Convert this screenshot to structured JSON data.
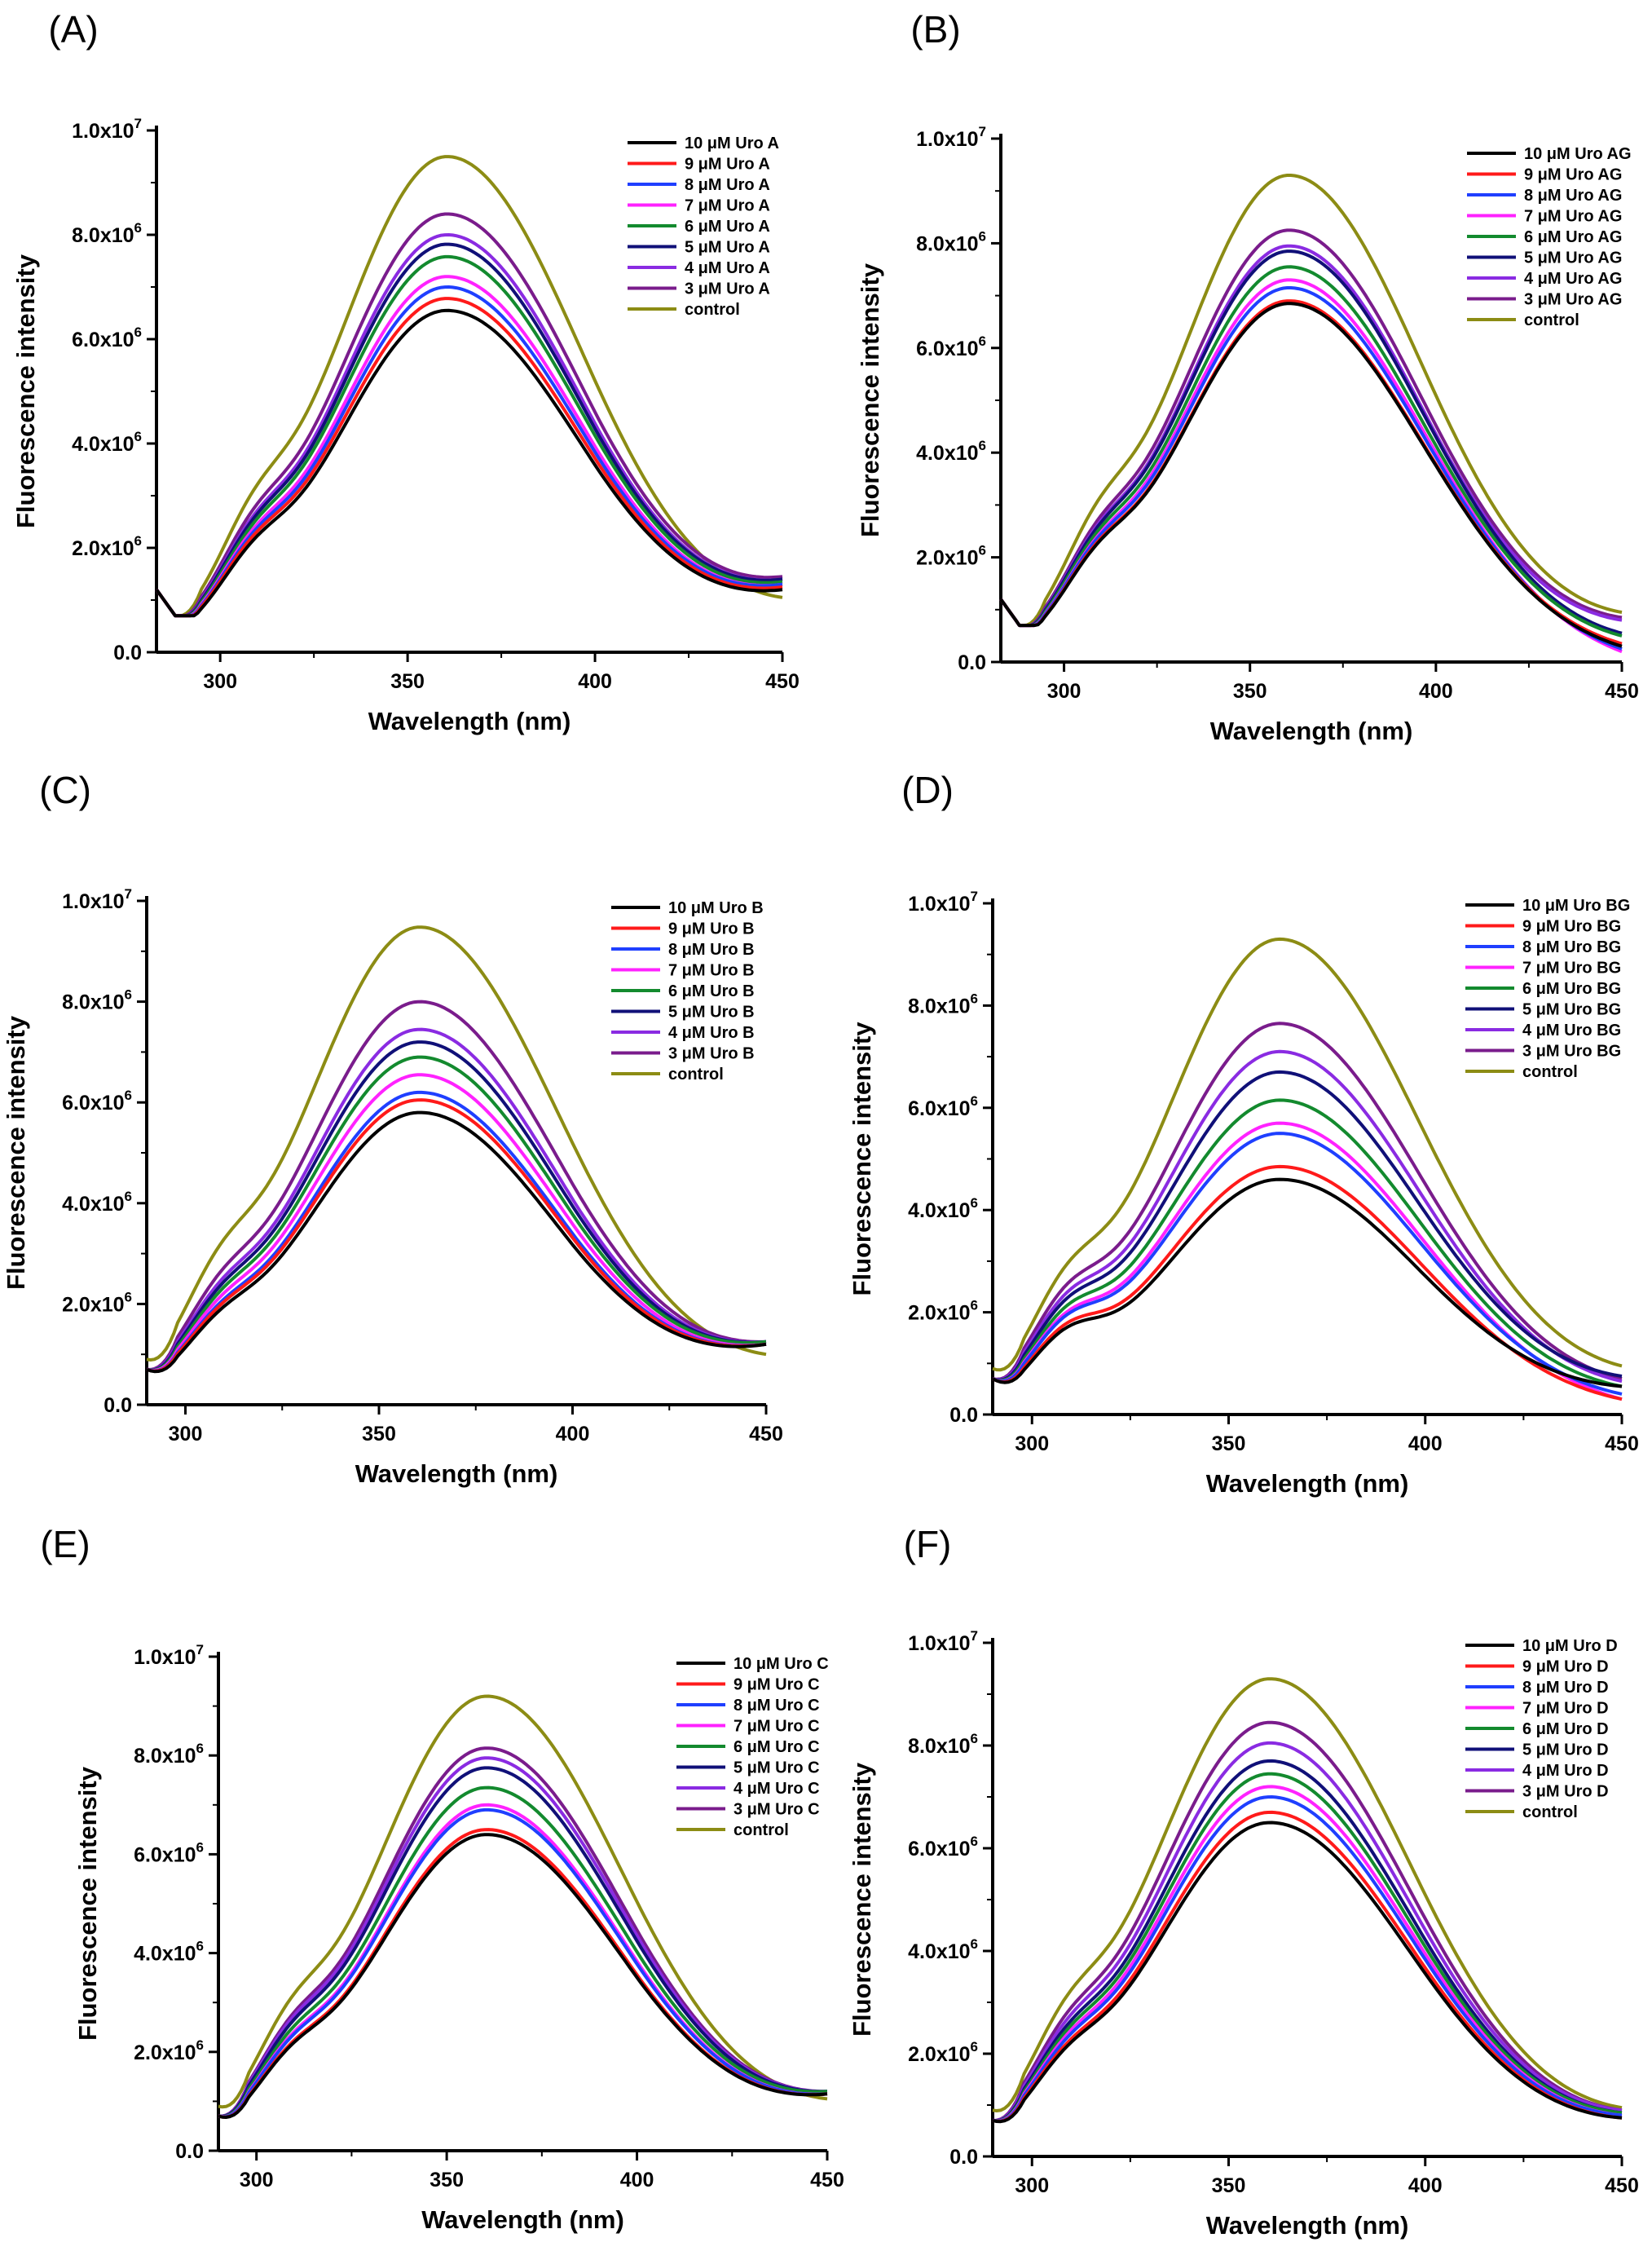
{
  "colors": {
    "c10": "#000000",
    "c9": "#ff1a1a",
    "c8": "#1f3fff",
    "c7": "#ff22ff",
    "c6": "#138a2e",
    "c5": "#101078",
    "c4": "#8a2be2",
    "c3": "#7a1c8c",
    "control": "#8c8c14"
  },
  "chart_data": [
    {
      "type": "line",
      "panel": "(A)",
      "xlabel": "Wavelength (nm)",
      "ylabel": "Fluorescence intensity",
      "xlim": [
        283,
        450
      ],
      "ylim": [
        0,
        10000000
      ],
      "xticks": [
        "300",
        "350",
        "400",
        "450"
      ],
      "yticks": [
        {
          "value": 0,
          "base": "0.0",
          "exp": ""
        },
        {
          "value": 2000000,
          "base": "2.0x10",
          "exp": "6"
        },
        {
          "value": 4000000,
          "base": "4.0x10",
          "exp": "6"
        },
        {
          "value": 6000000,
          "base": "6.0x10",
          "exp": "6"
        },
        {
          "value": 8000000,
          "base": "8.0x10",
          "exp": "6"
        },
        {
          "value": 10000000,
          "base": "1.0x10",
          "exp": "7"
        }
      ],
      "legend_position": "top-right",
      "series": [
        {
          "name": "10 μM Uro A",
          "key": "c10",
          "peak": 6550000,
          "tail": 1200000,
          "shoulder": 1900000
        },
        {
          "name": "9 μM Uro A",
          "key": "c9",
          "peak": 6780000,
          "tail": 1250000,
          "shoulder": 2000000
        },
        {
          "name": "8 μM Uro A",
          "key": "c8",
          "peak": 7000000,
          "tail": 1300000,
          "shoulder": 2050000
        },
        {
          "name": "7 μM Uro A",
          "key": "c7",
          "peak": 7200000,
          "tail": 1300000,
          "shoulder": 2100000
        },
        {
          "name": "6 μM Uro A",
          "key": "c6",
          "peak": 7580000,
          "tail": 1350000,
          "shoulder": 2150000
        },
        {
          "name": "5 μM Uro A",
          "key": "c5",
          "peak": 7820000,
          "tail": 1400000,
          "shoulder": 2250000
        },
        {
          "name": "4 μM Uro A",
          "key": "c4",
          "peak": 8000000,
          "tail": 1400000,
          "shoulder": 2300000
        },
        {
          "name": "3 μM Uro A",
          "key": "c3",
          "peak": 8400000,
          "tail": 1450000,
          "shoulder": 2400000
        },
        {
          "name": "control",
          "key": "control",
          "peak": 9500000,
          "tail": 1050000,
          "shoulder": 2700000
        }
      ]
    },
    {
      "type": "line",
      "panel": "(B)",
      "xlabel": "Wavelength (nm)",
      "ylabel": "Fluorescence intensity",
      "xlim": [
        283,
        450
      ],
      "ylim": [
        0,
        10000000
      ],
      "xticks": [
        "300",
        "350",
        "400",
        "450"
      ],
      "yticks": [
        {
          "value": 0,
          "base": "0.0",
          "exp": ""
        },
        {
          "value": 2000000,
          "base": "2.0x10",
          "exp": "6"
        },
        {
          "value": 4000000,
          "base": "4.0x10",
          "exp": "6"
        },
        {
          "value": 6000000,
          "base": "6.0x10",
          "exp": "6"
        },
        {
          "value": 8000000,
          "base": "8.0x10",
          "exp": "6"
        },
        {
          "value": 10000000,
          "base": "1.0x10",
          "exp": "7"
        }
      ],
      "legend_position": "top-right",
      "series": [
        {
          "name": "10 μM Uro AG",
          "key": "c10",
          "peak": 6850000,
          "tail": 300000,
          "shoulder": 2000000
        },
        {
          "name": "9 μM Uro AG",
          "key": "c9",
          "peak": 6900000,
          "tail": 350000,
          "shoulder": 2050000
        },
        {
          "name": "8 μM Uro AG",
          "key": "c8",
          "peak": 7150000,
          "tail": 250000,
          "shoulder": 2100000
        },
        {
          "name": "7 μM Uro AG",
          "key": "c7",
          "peak": 7300000,
          "tail": 200000,
          "shoulder": 2100000
        },
        {
          "name": "6 μM Uro AG",
          "key": "c6",
          "peak": 7550000,
          "tail": 500000,
          "shoulder": 2200000
        },
        {
          "name": "5 μM Uro AG",
          "key": "c5",
          "peak": 7850000,
          "tail": 550000,
          "shoulder": 2250000
        },
        {
          "name": "4 μM Uro AG",
          "key": "c4",
          "peak": 7950000,
          "tail": 800000,
          "shoulder": 2300000
        },
        {
          "name": "3 μM Uro AG",
          "key": "c3",
          "peak": 8250000,
          "tail": 850000,
          "shoulder": 2350000
        },
        {
          "name": "control",
          "key": "control",
          "peak": 9300000,
          "tail": 950000,
          "shoulder": 2700000
        }
      ]
    },
    {
      "type": "line",
      "panel": "(C)",
      "xlabel": "Wavelength (nm)",
      "ylabel": "Fluorescence intensity",
      "xlim": [
        290,
        450
      ],
      "ylim": [
        0,
        10000000
      ],
      "xticks": [
        "300",
        "350",
        "400",
        "450"
      ],
      "yticks": [
        {
          "value": 0,
          "base": "0.0",
          "exp": ""
        },
        {
          "value": 2000000,
          "base": "2.0x10",
          "exp": "6"
        },
        {
          "value": 4000000,
          "base": "4.0x10",
          "exp": "6"
        },
        {
          "value": 6000000,
          "base": "6.0x10",
          "exp": "6"
        },
        {
          "value": 8000000,
          "base": "8.0x10",
          "exp": "6"
        },
        {
          "value": 10000000,
          "base": "1.0x10",
          "exp": "7"
        }
      ],
      "legend_position": "top-right",
      "series": [
        {
          "name": "10 μM Uro B",
          "key": "c10",
          "peak": 5800000,
          "tail": 1200000,
          "shoulder": 1600000
        },
        {
          "name": "9 μM Uro B",
          "key": "c9",
          "peak": 6050000,
          "tail": 1200000,
          "shoulder": 1700000
        },
        {
          "name": "8 μM Uro B",
          "key": "c8",
          "peak": 6200000,
          "tail": 1200000,
          "shoulder": 1750000
        },
        {
          "name": "7 μM Uro B",
          "key": "c7",
          "peak": 6550000,
          "tail": 1200000,
          "shoulder": 1850000
        },
        {
          "name": "6 μM Uro B",
          "key": "c6",
          "peak": 6900000,
          "tail": 1250000,
          "shoulder": 1950000
        },
        {
          "name": "5 μM Uro B",
          "key": "c5",
          "peak": 7200000,
          "tail": 1250000,
          "shoulder": 2050000
        },
        {
          "name": "4 μM Uro B",
          "key": "c4",
          "peak": 7450000,
          "tail": 1250000,
          "shoulder": 2150000
        },
        {
          "name": "3 μM Uro B",
          "key": "c3",
          "peak": 8000000,
          "tail": 1250000,
          "shoulder": 2300000
        },
        {
          "name": "control",
          "key": "control",
          "peak": 9480000,
          "tail": 1000000,
          "shoulder": 2900000
        }
      ]
    },
    {
      "type": "line",
      "panel": "(D)",
      "xlabel": "Wavelength (nm)",
      "ylabel": "Fluorescence intensity",
      "xlim": [
        290,
        450
      ],
      "ylim": [
        0,
        10000000
      ],
      "xticks": [
        "300",
        "350",
        "400",
        "450"
      ],
      "yticks": [
        {
          "value": 0,
          "base": "0.0",
          "exp": ""
        },
        {
          "value": 2000000,
          "base": "2.0x10",
          "exp": "6"
        },
        {
          "value": 4000000,
          "base": "4.0x10",
          "exp": "6"
        },
        {
          "value": 6000000,
          "base": "6.0x10",
          "exp": "6"
        },
        {
          "value": 8000000,
          "base": "8.0x10",
          "exp": "6"
        },
        {
          "value": 10000000,
          "base": "1.0x10",
          "exp": "7"
        }
      ],
      "legend_position": "top-right",
      "series": [
        {
          "name": "10 μM Uro BG",
          "key": "c10",
          "peak": 4600000,
          "tail": 550000,
          "shoulder": 2300000
        },
        {
          "name": "9 μM Uro BG",
          "key": "c9",
          "peak": 4850000,
          "tail": 300000,
          "shoulder": 2400000
        },
        {
          "name": "8 μM Uro BG",
          "key": "c8",
          "peak": 5500000,
          "tail": 400000,
          "shoulder": 2500000
        },
        {
          "name": "7 μM Uro BG",
          "key": "c7",
          "peak": 5700000,
          "tail": 300000,
          "shoulder": 2550000
        },
        {
          "name": "6 μM Uro BG",
          "key": "c6",
          "peak": 6150000,
          "tail": 550000,
          "shoulder": 2650000
        },
        {
          "name": "5 μM Uro BG",
          "key": "c5",
          "peak": 6700000,
          "tail": 750000,
          "shoulder": 2750000
        },
        {
          "name": "4 μM Uro BG",
          "key": "c4",
          "peak": 7100000,
          "tail": 650000,
          "shoulder": 2850000
        },
        {
          "name": "3 μM Uro BG",
          "key": "c3",
          "peak": 7650000,
          "tail": 700000,
          "shoulder": 3000000
        },
        {
          "name": "control",
          "key": "control",
          "peak": 9300000,
          "tail": 950000,
          "shoulder": 3200000
        }
      ]
    },
    {
      "type": "line",
      "panel": "(E)",
      "xlabel": "Wavelength (nm)",
      "ylabel": "Fluorescence intensity",
      "xlim": [
        290,
        450
      ],
      "ylim": [
        0,
        10000000
      ],
      "xticks": [
        "300",
        "350",
        "400",
        "450"
      ],
      "yticks": [
        {
          "value": 0,
          "base": "0.0",
          "exp": ""
        },
        {
          "value": 2000000,
          "base": "2.0x10",
          "exp": "6"
        },
        {
          "value": 4000000,
          "base": "4.0x10",
          "exp": "6"
        },
        {
          "value": 6000000,
          "base": "6.0x10",
          "exp": "6"
        },
        {
          "value": 8000000,
          "base": "8.0x10",
          "exp": "6"
        },
        {
          "value": 10000000,
          "base": "1.0x10",
          "exp": "7"
        }
      ],
      "legend_position": "top-right",
      "series": [
        {
          "name": "10 μM Uro C",
          "key": "c10",
          "peak": 6400000,
          "tail": 1150000,
          "shoulder": 1900000
        },
        {
          "name": "9 μM Uro C",
          "key": "c9",
          "peak": 6500000,
          "tail": 1150000,
          "shoulder": 1950000
        },
        {
          "name": "8 μM Uro C",
          "key": "c8",
          "peak": 6900000,
          "tail": 1150000,
          "shoulder": 2050000
        },
        {
          "name": "7 μM Uro C",
          "key": "c7",
          "peak": 7000000,
          "tail": 1150000,
          "shoulder": 2100000
        },
        {
          "name": "6 μM Uro C",
          "key": "c6",
          "peak": 7350000,
          "tail": 1200000,
          "shoulder": 2200000
        },
        {
          "name": "5 μM Uro C",
          "key": "c5",
          "peak": 7750000,
          "tail": 1200000,
          "shoulder": 2300000
        },
        {
          "name": "4 μM Uro C",
          "key": "c4",
          "peak": 7950000,
          "tail": 1200000,
          "shoulder": 2400000
        },
        {
          "name": "3 μM Uro C",
          "key": "c3",
          "peak": 8150000,
          "tail": 1200000,
          "shoulder": 2450000
        },
        {
          "name": "control",
          "key": "control",
          "peak": 9200000,
          "tail": 1050000,
          "shoulder": 2800000
        }
      ]
    },
    {
      "type": "line",
      "panel": "(F)",
      "xlabel": "Wavelength (nm)",
      "ylabel": "Fluorescence intensity",
      "xlim": [
        290,
        450
      ],
      "ylim": [
        0,
        10000000
      ],
      "xticks": [
        "300",
        "350",
        "400",
        "450"
      ],
      "yticks": [
        {
          "value": 0,
          "base": "0.0",
          "exp": ""
        },
        {
          "value": 2000000,
          "base": "2.0x10",
          "exp": "6"
        },
        {
          "value": 4000000,
          "base": "4.0x10",
          "exp": "6"
        },
        {
          "value": 6000000,
          "base": "6.0x10",
          "exp": "6"
        },
        {
          "value": 8000000,
          "base": "8.0x10",
          "exp": "6"
        },
        {
          "value": 10000000,
          "base": "1.0x10",
          "exp": "7"
        }
      ],
      "legend_position": "top-right",
      "series": [
        {
          "name": "10 μM Uro D",
          "key": "c10",
          "peak": 6500000,
          "tail": 750000,
          "shoulder": 1900000
        },
        {
          "name": "9 μM Uro D",
          "key": "c9",
          "peak": 6700000,
          "tail": 750000,
          "shoulder": 1950000
        },
        {
          "name": "8 μM Uro D",
          "key": "c8",
          "peak": 7000000,
          "tail": 800000,
          "shoulder": 2050000
        },
        {
          "name": "7 μM Uro D",
          "key": "c7",
          "peak": 7200000,
          "tail": 800000,
          "shoulder": 2100000
        },
        {
          "name": "6 μM Uro D",
          "key": "c6",
          "peak": 7450000,
          "tail": 850000,
          "shoulder": 2200000
        },
        {
          "name": "5 μM Uro D",
          "key": "c5",
          "peak": 7700000,
          "tail": 850000,
          "shoulder": 2300000
        },
        {
          "name": "4 μM Uro D",
          "key": "c4",
          "peak": 8050000,
          "tail": 900000,
          "shoulder": 2400000
        },
        {
          "name": "3 μM Uro D",
          "key": "c3",
          "peak": 8450000,
          "tail": 900000,
          "shoulder": 2500000
        },
        {
          "name": "control",
          "key": "control",
          "peak": 9300000,
          "tail": 950000,
          "shoulder": 2900000
        }
      ]
    }
  ]
}
